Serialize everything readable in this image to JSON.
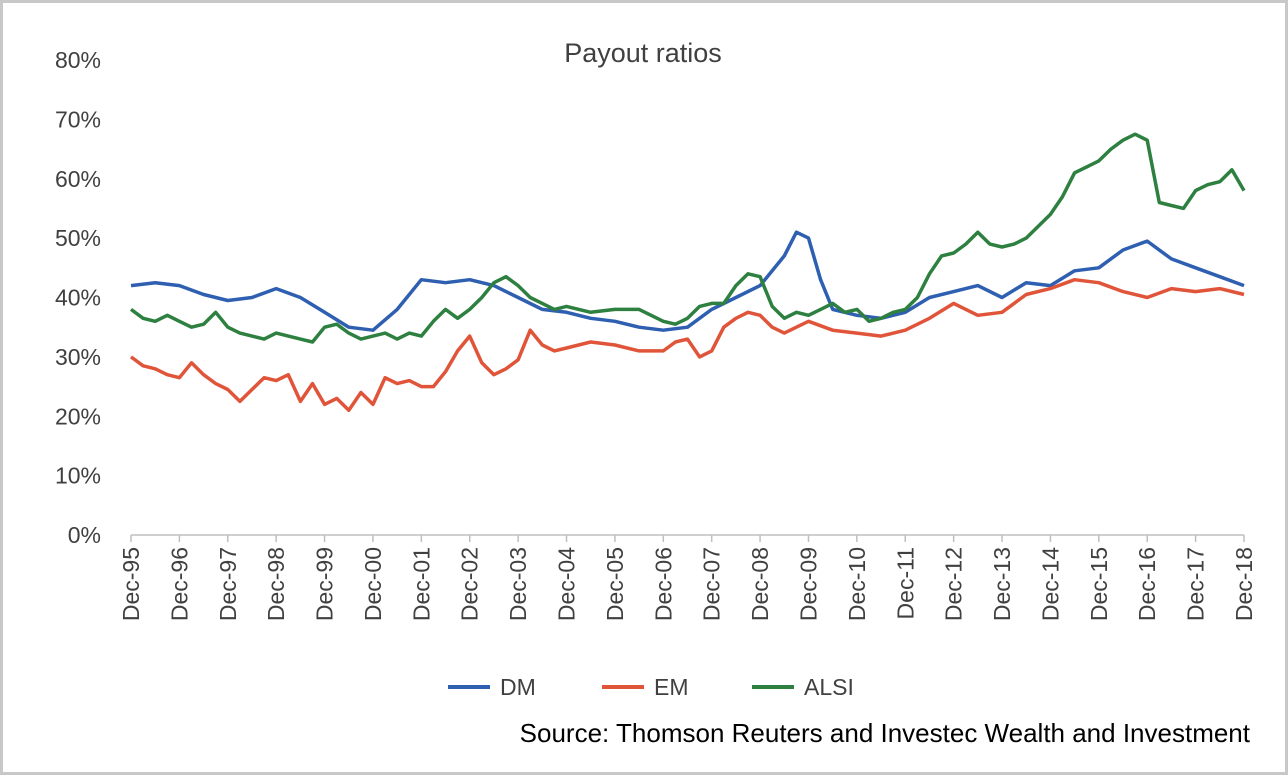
{
  "chart_data": {
    "type": "line",
    "title": "Payout ratios",
    "xlabel": "",
    "ylabel": "",
    "ylim": [
      0,
      80
    ],
    "y_ticks": [
      "0%",
      "10%",
      "20%",
      "30%",
      "40%",
      "50%",
      "60%",
      "70%",
      "80%"
    ],
    "y_tick_values": [
      0,
      10,
      20,
      30,
      40,
      50,
      60,
      70,
      80
    ],
    "x_ticks": [
      "Dec-95",
      "Dec-96",
      "Dec-97",
      "Dec-98",
      "Dec-99",
      "Dec-00",
      "Dec-01",
      "Dec-02",
      "Dec-03",
      "Dec-04",
      "Dec-05",
      "Dec-06",
      "Dec-07",
      "Dec-08",
      "Dec-09",
      "Dec-10",
      "Dec-11",
      "Dec-12",
      "Dec-13",
      "Dec-14",
      "Dec-15",
      "Dec-16",
      "Dec-17",
      "Dec-18"
    ],
    "x_range": [
      "1995-12",
      "2018-12"
    ],
    "grid": false,
    "legend_position": "bottom",
    "series": [
      {
        "name": "DM",
        "color": "#2e5fb0",
        "points": [
          [
            "1995-12",
            42.0
          ],
          [
            "1996-06",
            42.5
          ],
          [
            "1996-12",
            42.0
          ],
          [
            "1997-06",
            40.5
          ],
          [
            "1997-12",
            39.5
          ],
          [
            "1998-06",
            40.0
          ],
          [
            "1998-12",
            41.5
          ],
          [
            "1999-06",
            40.0
          ],
          [
            "1999-12",
            37.5
          ],
          [
            "2000-06",
            35.0
          ],
          [
            "2000-12",
            34.5
          ],
          [
            "2001-06",
            38.0
          ],
          [
            "2001-12",
            43.0
          ],
          [
            "2002-06",
            42.5
          ],
          [
            "2002-12",
            43.0
          ],
          [
            "2003-06",
            42.0
          ],
          [
            "2003-12",
            40.0
          ],
          [
            "2004-06",
            38.0
          ],
          [
            "2004-12",
            37.5
          ],
          [
            "2005-06",
            36.5
          ],
          [
            "2005-12",
            36.0
          ],
          [
            "2006-06",
            35.0
          ],
          [
            "2006-12",
            34.5
          ],
          [
            "2007-06",
            35.0
          ],
          [
            "2007-12",
            38.0
          ],
          [
            "2008-06",
            40.0
          ],
          [
            "2008-12",
            42.0
          ],
          [
            "2009-06",
            47.0
          ],
          [
            "2009-09",
            51.0
          ],
          [
            "2009-12",
            50.0
          ],
          [
            "2010-03",
            43.0
          ],
          [
            "2010-06",
            38.0
          ],
          [
            "2010-12",
            37.0
          ],
          [
            "2011-06",
            36.5
          ],
          [
            "2011-12",
            37.5
          ],
          [
            "2012-06",
            40.0
          ],
          [
            "2012-12",
            41.0
          ],
          [
            "2013-06",
            42.0
          ],
          [
            "2013-12",
            40.0
          ],
          [
            "2014-06",
            42.5
          ],
          [
            "2014-12",
            42.0
          ],
          [
            "2015-06",
            44.5
          ],
          [
            "2015-12",
            45.0
          ],
          [
            "2016-06",
            48.0
          ],
          [
            "2016-12",
            49.5
          ],
          [
            "2017-06",
            46.5
          ],
          [
            "2017-12",
            45.0
          ],
          [
            "2018-06",
            43.5
          ],
          [
            "2018-12",
            42.0
          ]
        ]
      },
      {
        "name": "EM",
        "color": "#e0553a",
        "points": [
          [
            "1995-12",
            30.0
          ],
          [
            "1996-03",
            28.5
          ],
          [
            "1996-06",
            28.0
          ],
          [
            "1996-09",
            27.0
          ],
          [
            "1996-12",
            26.5
          ],
          [
            "1997-03",
            29.0
          ],
          [
            "1997-06",
            27.0
          ],
          [
            "1997-09",
            25.5
          ],
          [
            "1997-12",
            24.5
          ],
          [
            "1998-03",
            22.5
          ],
          [
            "1998-06",
            24.5
          ],
          [
            "1998-09",
            26.5
          ],
          [
            "1998-12",
            26.0
          ],
          [
            "1999-03",
            27.0
          ],
          [
            "1999-06",
            22.5
          ],
          [
            "1999-09",
            25.5
          ],
          [
            "1999-12",
            22.0
          ],
          [
            "2000-03",
            23.0
          ],
          [
            "2000-06",
            21.0
          ],
          [
            "2000-09",
            24.0
          ],
          [
            "2000-12",
            22.0
          ],
          [
            "2001-03",
            26.5
          ],
          [
            "2001-06",
            25.5
          ],
          [
            "2001-09",
            26.0
          ],
          [
            "2001-12",
            25.0
          ],
          [
            "2002-03",
            25.0
          ],
          [
            "2002-06",
            27.5
          ],
          [
            "2002-09",
            31.0
          ],
          [
            "2002-12",
            33.5
          ],
          [
            "2003-03",
            29.0
          ],
          [
            "2003-06",
            27.0
          ],
          [
            "2003-09",
            28.0
          ],
          [
            "2003-12",
            29.5
          ],
          [
            "2004-03",
            34.5
          ],
          [
            "2004-06",
            32.0
          ],
          [
            "2004-09",
            31.0
          ],
          [
            "2004-12",
            31.5
          ],
          [
            "2005-06",
            32.5
          ],
          [
            "2005-12",
            32.0
          ],
          [
            "2006-06",
            31.0
          ],
          [
            "2006-12",
            31.0
          ],
          [
            "2007-03",
            32.5
          ],
          [
            "2007-06",
            33.0
          ],
          [
            "2007-09",
            30.0
          ],
          [
            "2007-12",
            31.0
          ],
          [
            "2008-03",
            35.0
          ],
          [
            "2008-06",
            36.5
          ],
          [
            "2008-09",
            37.5
          ],
          [
            "2008-12",
            37.0
          ],
          [
            "2009-03",
            35.0
          ],
          [
            "2009-06",
            34.0
          ],
          [
            "2009-09",
            35.0
          ],
          [
            "2009-12",
            36.0
          ],
          [
            "2010-06",
            34.5
          ],
          [
            "2010-12",
            34.0
          ],
          [
            "2011-06",
            33.5
          ],
          [
            "2011-12",
            34.5
          ],
          [
            "2012-06",
            36.5
          ],
          [
            "2012-12",
            39.0
          ],
          [
            "2013-06",
            37.0
          ],
          [
            "2013-12",
            37.5
          ],
          [
            "2014-06",
            40.5
          ],
          [
            "2014-12",
            41.5
          ],
          [
            "2015-06",
            43.0
          ],
          [
            "2015-12",
            42.5
          ],
          [
            "2016-06",
            41.0
          ],
          [
            "2016-12",
            40.0
          ],
          [
            "2017-06",
            41.5
          ],
          [
            "2017-12",
            41.0
          ],
          [
            "2018-06",
            41.5
          ],
          [
            "2018-12",
            40.5
          ]
        ]
      },
      {
        "name": "ALSI",
        "color": "#2e8040",
        "points": [
          [
            "1995-12",
            38.0
          ],
          [
            "1996-03",
            36.5
          ],
          [
            "1996-06",
            36.0
          ],
          [
            "1996-09",
            37.0
          ],
          [
            "1996-12",
            36.0
          ],
          [
            "1997-03",
            35.0
          ],
          [
            "1997-06",
            35.5
          ],
          [
            "1997-09",
            37.5
          ],
          [
            "1997-12",
            35.0
          ],
          [
            "1998-03",
            34.0
          ],
          [
            "1998-06",
            33.5
          ],
          [
            "1998-09",
            33.0
          ],
          [
            "1998-12",
            34.0
          ],
          [
            "1999-03",
            33.5
          ],
          [
            "1999-06",
            33.0
          ],
          [
            "1999-09",
            32.5
          ],
          [
            "1999-12",
            35.0
          ],
          [
            "2000-03",
            35.5
          ],
          [
            "2000-06",
            34.0
          ],
          [
            "2000-09",
            33.0
          ],
          [
            "2000-12",
            33.5
          ],
          [
            "2001-03",
            34.0
          ],
          [
            "2001-06",
            33.0
          ],
          [
            "2001-09",
            34.0
          ],
          [
            "2001-12",
            33.5
          ],
          [
            "2002-03",
            36.0
          ],
          [
            "2002-06",
            38.0
          ],
          [
            "2002-09",
            36.5
          ],
          [
            "2002-12",
            38.0
          ],
          [
            "2003-03",
            40.0
          ],
          [
            "2003-06",
            42.5
          ],
          [
            "2003-09",
            43.5
          ],
          [
            "2003-12",
            42.0
          ],
          [
            "2004-03",
            40.0
          ],
          [
            "2004-06",
            39.0
          ],
          [
            "2004-09",
            38.0
          ],
          [
            "2004-12",
            38.5
          ],
          [
            "2005-06",
            37.5
          ],
          [
            "2005-12",
            38.0
          ],
          [
            "2006-06",
            38.0
          ],
          [
            "2006-12",
            36.0
          ],
          [
            "2007-03",
            35.5
          ],
          [
            "2007-06",
            36.5
          ],
          [
            "2007-09",
            38.5
          ],
          [
            "2007-12",
            39.0
          ],
          [
            "2008-03",
            39.0
          ],
          [
            "2008-06",
            42.0
          ],
          [
            "2008-09",
            44.0
          ],
          [
            "2008-12",
            43.5
          ],
          [
            "2009-03",
            38.5
          ],
          [
            "2009-06",
            36.5
          ],
          [
            "2009-09",
            37.5
          ],
          [
            "2009-12",
            37.0
          ],
          [
            "2010-03",
            38.0
          ],
          [
            "2010-06",
            39.0
          ],
          [
            "2010-09",
            37.5
          ],
          [
            "2010-12",
            38.0
          ],
          [
            "2011-03",
            36.0
          ],
          [
            "2011-06",
            36.5
          ],
          [
            "2011-09",
            37.5
          ],
          [
            "2011-12",
            38.0
          ],
          [
            "2012-03",
            40.0
          ],
          [
            "2012-06",
            44.0
          ],
          [
            "2012-09",
            47.0
          ],
          [
            "2012-12",
            47.5
          ],
          [
            "2013-03",
            49.0
          ],
          [
            "2013-06",
            51.0
          ],
          [
            "2013-09",
            49.0
          ],
          [
            "2013-12",
            48.5
          ],
          [
            "2014-03",
            49.0
          ],
          [
            "2014-06",
            50.0
          ],
          [
            "2014-09",
            52.0
          ],
          [
            "2014-12",
            54.0
          ],
          [
            "2015-03",
            57.0
          ],
          [
            "2015-06",
            61.0
          ],
          [
            "2015-09",
            62.0
          ],
          [
            "2015-12",
            63.0
          ],
          [
            "2016-03",
            65.0
          ],
          [
            "2016-06",
            66.5
          ],
          [
            "2016-09",
            67.5
          ],
          [
            "2016-12",
            66.5
          ],
          [
            "2017-03",
            56.0
          ],
          [
            "2017-06",
            55.5
          ],
          [
            "2017-09",
            55.0
          ],
          [
            "2017-12",
            58.0
          ],
          [
            "2018-03",
            59.0
          ],
          [
            "2018-06",
            59.5
          ],
          [
            "2018-09",
            61.5
          ],
          [
            "2018-12",
            58.0
          ]
        ]
      }
    ],
    "source": "Source: Thomson Reuters and Investec Wealth and Investment"
  }
}
